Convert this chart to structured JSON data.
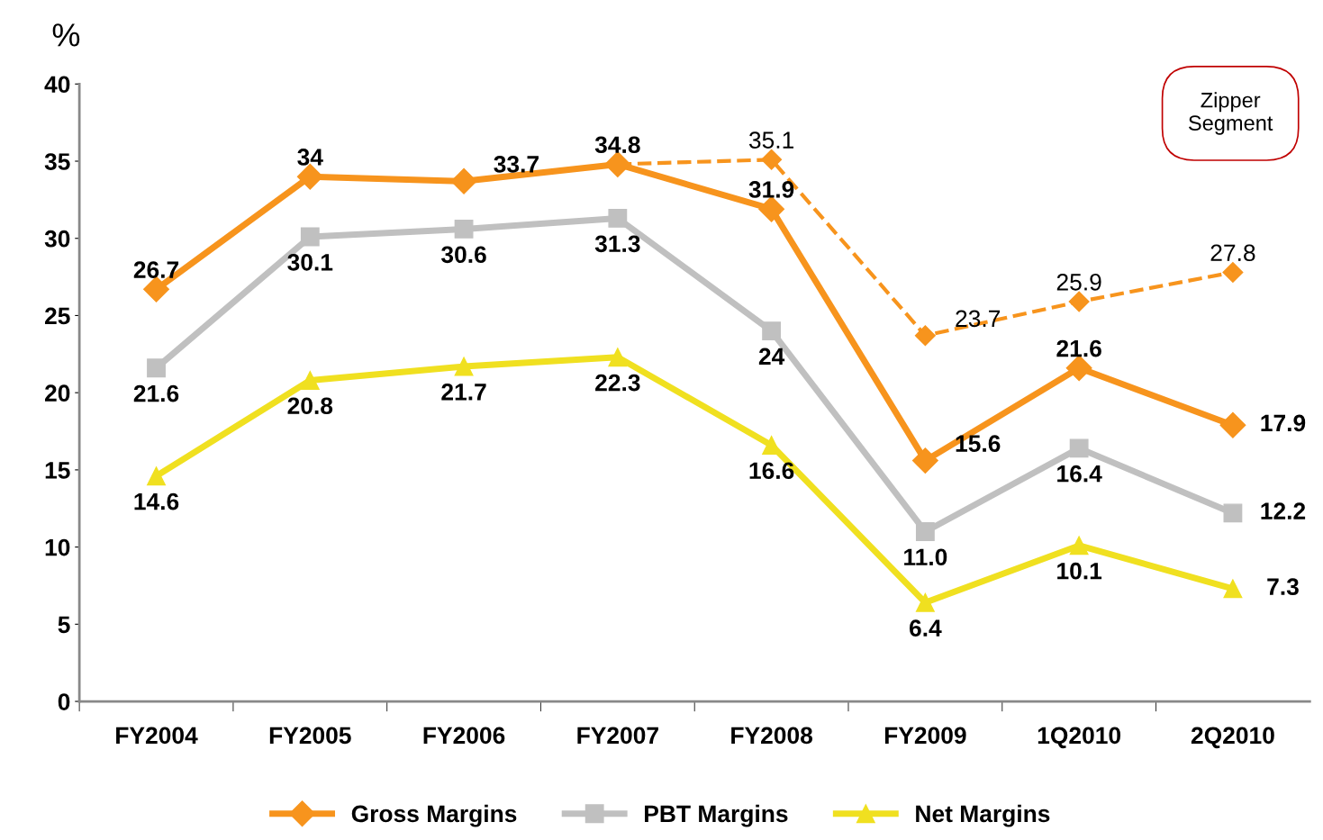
{
  "chart_data": {
    "type": "line",
    "ylabel": "%",
    "categories": [
      "FY2004",
      "FY2005",
      "FY2006",
      "FY2007",
      "FY2008",
      "FY2009",
      "1Q2010",
      "2Q2010"
    ],
    "series": [
      {
        "name": "Gross Margins",
        "color": "#f7941d",
        "marker": "diamond",
        "values": [
          26.7,
          34,
          33.7,
          34.8,
          31.9,
          15.6,
          21.6,
          17.9
        ],
        "value_labels": [
          "26.7",
          "34",
          "33.7",
          "34.8",
          "31.9",
          "15.6",
          "21.6",
          "17.9"
        ]
      },
      {
        "name": "PBT Margins",
        "color": "#c0c0c0",
        "marker": "square",
        "values": [
          21.6,
          30.1,
          30.6,
          31.3,
          24,
          11.0,
          16.4,
          12.2
        ],
        "value_labels": [
          "21.6",
          "30.1",
          "30.6",
          "31.3",
          "24",
          "11.0",
          "16.4",
          "12.2"
        ]
      },
      {
        "name": "Net Margins",
        "color": "#f0e020",
        "marker": "triangle",
        "values": [
          14.6,
          20.8,
          21.7,
          22.3,
          16.6,
          6.4,
          10.1,
          7.3
        ],
        "value_labels": [
          "14.6",
          "20.8",
          "21.7",
          "22.3",
          "16.6",
          "6.4",
          "10.1",
          "7.3"
        ]
      },
      {
        "color": "#f7941d",
        "marker": "diamond",
        "line_style": "dashed",
        "values": [
          null,
          null,
          null,
          34.8,
          35.1,
          23.7,
          25.9,
          27.8
        ],
        "value_labels": [
          null,
          null,
          null,
          null,
          "35.1",
          "23.7",
          "25.9",
          "27.8"
        ]
      }
    ],
    "ylim": [
      0,
      40
    ],
    "yticks": [
      0,
      5,
      10,
      15,
      20,
      25,
      30,
      35,
      40
    ],
    "grid": false,
    "legend": "bottom",
    "annotations": [
      "Zipper Segment"
    ]
  }
}
